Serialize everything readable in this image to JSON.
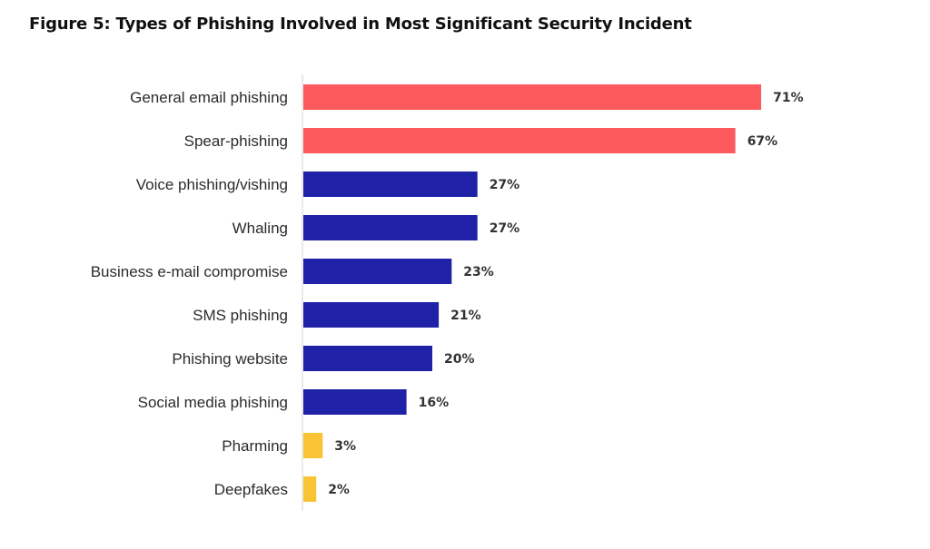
{
  "chart_data": {
    "type": "bar",
    "orientation": "horizontal",
    "title": "Figure 5: Types of Phishing Involved in Most Significant Security Incident",
    "categories": [
      "General email phishing",
      "Spear-phishing",
      "Voice phishing/vishing",
      "Whaling",
      "Business e-mail compromise",
      "SMS phishing",
      "Phishing website",
      "Social media phishing",
      "Pharming",
      "Deepfakes"
    ],
    "values": [
      71,
      67,
      27,
      27,
      23,
      21,
      20,
      16,
      3,
      2
    ],
    "value_labels": [
      "71%",
      "67%",
      "27%",
      "27%",
      "23%",
      "21%",
      "20%",
      "16%",
      "3%",
      "2%"
    ],
    "bar_colors": [
      "#fc5a5c",
      "#fc5a5c",
      "#1f22a7",
      "#1f22a7",
      "#1f22a7",
      "#1f22a7",
      "#1f22a7",
      "#1f22a7",
      "#f9c335",
      "#f9c335"
    ],
    "unit": "%",
    "xlim": [
      0,
      100
    ],
    "grid": false,
    "legend": "none"
  }
}
